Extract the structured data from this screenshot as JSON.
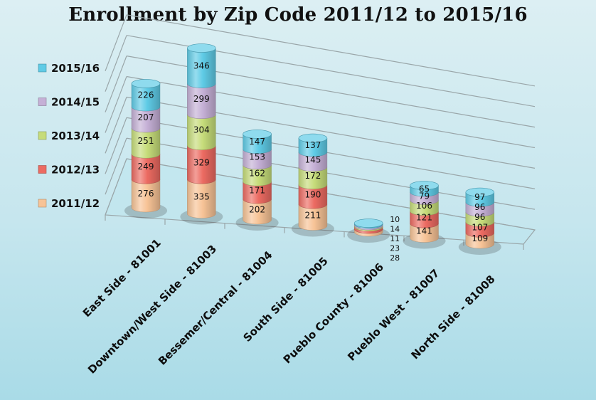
{
  "chart_data": {
    "type": "bar",
    "stacked": true,
    "title": "Enrollment by Zip Code 2011/12 to 2015/16",
    "xlabel": "",
    "ylabel": "",
    "legend_position": "left",
    "categories": [
      "East Side - 81001",
      "Downtown/West Side - 81003",
      "Bessemer/Central - 81004",
      "South Side - 81005",
      "Pueblo County - 81006",
      "Pueblo West - 81007",
      "North Side - 81008"
    ],
    "series": [
      {
        "name": "2011/12",
        "color": "#f7c396",
        "values": [
          276,
          335,
          202,
          211,
          28,
          141,
          109
        ]
      },
      {
        "name": "2012/13",
        "color": "#ec6b62",
        "values": [
          249,
          329,
          171,
          190,
          23,
          121,
          107
        ]
      },
      {
        "name": "2013/14",
        "color": "#c6dc7a",
        "values": [
          251,
          304,
          162,
          172,
          11,
          106,
          96
        ]
      },
      {
        "name": "2014/15",
        "color": "#c5b0d6",
        "values": [
          207,
          299,
          153,
          145,
          14,
          79,
          96
        ]
      },
      {
        "name": "2015/16",
        "color": "#5fcbe6",
        "values": [
          226,
          346,
          147,
          137,
          10,
          65,
          97
        ]
      }
    ]
  }
}
